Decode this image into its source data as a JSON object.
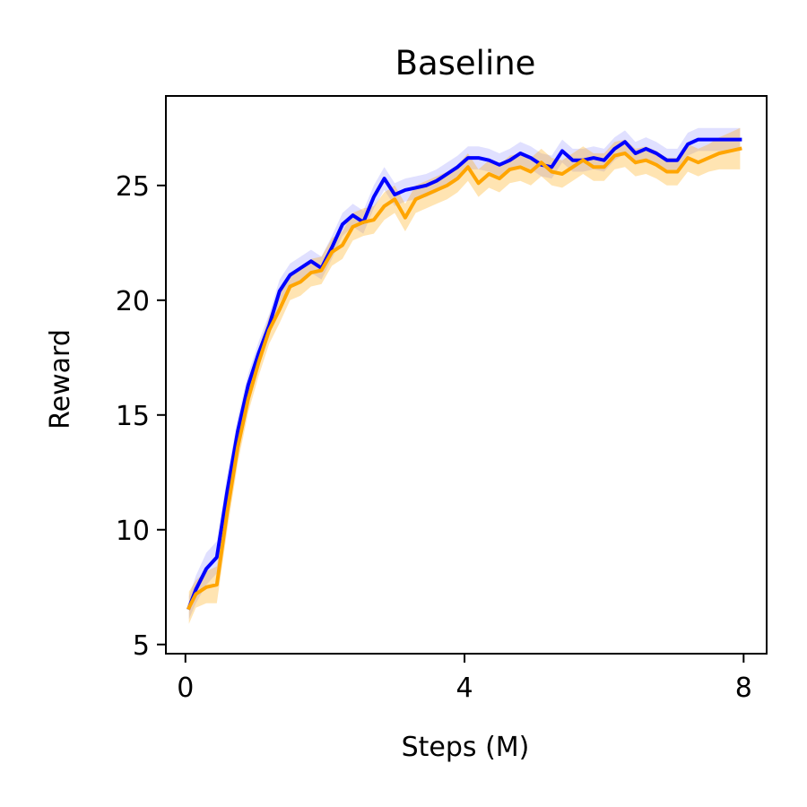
{
  "chart_data": {
    "type": "line",
    "title": "Baseline",
    "xlabel": "Steps (M)",
    "ylabel": "Reward",
    "xlim": [
      -0.28,
      8.33
    ],
    "ylim": [
      4.6,
      28.9
    ],
    "xticks": [
      0,
      4,
      8
    ],
    "yticks": [
      5,
      10,
      15,
      20,
      25
    ],
    "grid": false,
    "legend": "none",
    "x": [
      0.05,
      0.15,
      0.3,
      0.45,
      0.6,
      0.75,
      0.9,
      1.05,
      1.2,
      1.35,
      1.5,
      1.65,
      1.8,
      1.95,
      2.1,
      2.25,
      2.4,
      2.55,
      2.7,
      2.85,
      3.0,
      3.15,
      3.3,
      3.45,
      3.6,
      3.75,
      3.9,
      4.05,
      4.2,
      4.35,
      4.5,
      4.65,
      4.8,
      4.95,
      5.1,
      5.25,
      5.4,
      5.55,
      5.7,
      5.85,
      6.0,
      6.15,
      6.3,
      6.45,
      6.6,
      6.75,
      6.9,
      7.05,
      7.2,
      7.35,
      7.5,
      7.65,
      7.8,
      7.95
    ],
    "series": [
      {
        "color": "#0000ff",
        "band_color": "#0000ff",
        "band_opacity": 0.12,
        "values": [
          6.6,
          7.4,
          8.3,
          8.8,
          11.7,
          14.3,
          16.3,
          17.7,
          18.9,
          20.4,
          21.1,
          21.4,
          21.7,
          21.4,
          22.3,
          23.3,
          23.7,
          23.4,
          24.5,
          25.3,
          24.6,
          24.8,
          24.9,
          25.0,
          25.2,
          25.5,
          25.8,
          26.2,
          26.2,
          26.1,
          25.9,
          26.1,
          26.4,
          26.2,
          25.9,
          25.8,
          26.5,
          26.1,
          26.1,
          26.2,
          26.1,
          26.6,
          26.9,
          26.4,
          26.6,
          26.4,
          26.1,
          26.1,
          26.8,
          27.0,
          27.0,
          27.0,
          27.0,
          27.0
        ],
        "band_half_width": [
          0.5,
          0.6,
          0.7,
          0.7,
          0.7,
          0.6,
          0.5,
          0.5,
          0.5,
          0.5,
          0.5,
          0.5,
          0.5,
          0.5,
          0.5,
          0.5,
          0.5,
          0.5,
          0.5,
          0.5,
          0.5,
          0.5,
          0.5,
          0.5,
          0.5,
          0.5,
          0.5,
          0.5,
          0.5,
          0.5,
          0.5,
          0.5,
          0.5,
          0.5,
          0.5,
          0.5,
          0.5,
          0.5,
          0.5,
          0.5,
          0.5,
          0.5,
          0.5,
          0.5,
          0.5,
          0.5,
          0.5,
          0.5,
          0.5,
          0.5,
          0.5,
          0.5,
          0.5,
          0.5
        ]
      },
      {
        "color": "#ffa500",
        "band_color": "#ffa500",
        "band_opacity": 0.3,
        "values": [
          6.6,
          7.2,
          7.5,
          7.6,
          10.8,
          13.6,
          15.7,
          17.3,
          18.7,
          19.6,
          20.6,
          20.8,
          21.2,
          21.3,
          22.1,
          22.4,
          23.2,
          23.4,
          23.5,
          24.1,
          24.4,
          23.6,
          24.4,
          24.6,
          24.8,
          25.0,
          25.3,
          25.8,
          25.1,
          25.5,
          25.3,
          25.7,
          25.8,
          25.6,
          26.0,
          25.6,
          25.5,
          25.8,
          26.1,
          25.8,
          25.8,
          26.3,
          26.4,
          26.0,
          26.1,
          25.9,
          25.6,
          25.6,
          26.2,
          26.0,
          26.2,
          26.4,
          26.5,
          26.6
        ],
        "band_half_width": [
          0.7,
          0.6,
          0.7,
          0.8,
          0.8,
          0.7,
          0.6,
          0.6,
          0.6,
          0.6,
          0.6,
          0.6,
          0.6,
          0.6,
          0.6,
          0.6,
          0.6,
          0.6,
          0.6,
          0.6,
          0.6,
          0.6,
          0.6,
          0.6,
          0.6,
          0.6,
          0.6,
          0.6,
          0.6,
          0.6,
          0.6,
          0.6,
          0.6,
          0.6,
          0.6,
          0.6,
          0.6,
          0.6,
          0.6,
          0.6,
          0.6,
          0.6,
          0.6,
          0.6,
          0.6,
          0.6,
          0.6,
          0.6,
          0.6,
          0.6,
          0.6,
          0.7,
          0.8,
          0.9
        ]
      }
    ]
  }
}
